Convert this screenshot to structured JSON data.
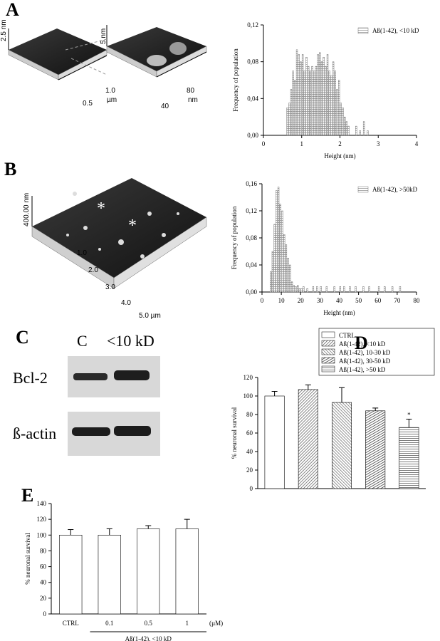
{
  "panels": {
    "letters": [
      "A",
      "B",
      "C",
      "D",
      "E"
    ],
    "afm_a": [
      "2.5 nm",
      "5 nm",
      "1.0",
      "µm",
      "0.5",
      "80",
      "nm",
      "40"
    ],
    "afm_b": [
      "400.00 nm",
      "1.0",
      "2.0",
      "3.0",
      "4.0",
      "5.0 µm",
      "*",
      "*"
    ],
    "blot": {
      "lanes": [
        "C",
        "<10 kD"
      ],
      "rows": [
        "Bcl-2",
        "ß-actin"
      ]
    }
  },
  "chart_data": [
    {
      "type": "histogram",
      "xlabel": "Height (nm)",
      "ylabel": "Frequency of population",
      "bins": [
        0.6,
        0.65,
        0.7,
        0.75,
        0.8,
        0.85,
        0.9,
        0.95,
        1.0,
        1.05,
        1.1,
        1.15,
        1.2,
        1.25,
        1.3,
        1.35,
        1.4,
        1.45,
        1.5,
        1.55,
        1.6,
        1.65,
        1.7,
        1.75,
        1.8,
        1.85,
        1.9,
        1.95,
        2.0,
        2.05,
        2.1,
        2.15,
        2.2,
        2.25,
        2.3,
        2.35,
        2.4,
        2.45,
        2.5,
        2.55,
        2.6,
        2.65,
        2.7,
        2.75,
        2.8
      ],
      "series": [
        {
          "name": "Aß(1-42), <10 kD",
          "color": "#8a8a8a",
          "values": [
            0.03,
            0.035,
            0.05,
            0.07,
            0.06,
            0.093,
            0.088,
            0.08,
            0.088,
            0.07,
            0.085,
            0.075,
            0.07,
            0.075,
            0.07,
            0.075,
            0.088,
            0.09,
            0.08,
            0.085,
            0.075,
            0.088,
            0.07,
            0.065,
            0.08,
            0.07,
            0.05,
            0.06,
            0.035,
            0.03,
            0.02,
            0.015,
            0.01,
            0,
            0,
            0,
            0.01,
            0,
            0.005,
            0,
            0.015,
            0,
            0.005,
            0
          ]
        }
      ],
      "xlim": [
        0,
        4
      ],
      "xticks": [
        0,
        1,
        2,
        3,
        4
      ],
      "ylim": [
        0,
        0.12
      ],
      "yticks": [
        {
          "value": 0,
          "label": "0,00"
        },
        {
          "value": 0.04,
          "label": "0,04"
        },
        {
          "value": 0.08,
          "label": "0,08"
        },
        {
          "value": 0.12,
          "label": "0,12"
        }
      ],
      "legend": "upper right"
    },
    {
      "type": "histogram",
      "xlabel": "Height (nm)",
      "ylabel": "Frequency of population",
      "bins": [
        4,
        5,
        6,
        7,
        8,
        9,
        10,
        11,
        12,
        13,
        14,
        15,
        16,
        17,
        18,
        19,
        20,
        21,
        22,
        23,
        24,
        25,
        26,
        27,
        28,
        29,
        30,
        31,
        32,
        33,
        34,
        35,
        36,
        37,
        38,
        39,
        40,
        41,
        42,
        43,
        44,
        45,
        46,
        47,
        48,
        49,
        50,
        51,
        52,
        53,
        54,
        55,
        56,
        57,
        58,
        59,
        60,
        61,
        62,
        63,
        64,
        65,
        66,
        67,
        68,
        69,
        70,
        71,
        72,
        73
      ],
      "series": [
        {
          "name": "Aß(1-42), >50kD",
          "color": "#8a8a8a",
          "values": [
            0.03,
            0.06,
            0.1,
            0.15,
            0.155,
            0.13,
            0.12,
            0.085,
            0.07,
            0.05,
            0.04,
            0.015,
            0.01,
            0.008,
            0.01,
            0.005,
            0.005,
            0.008,
            0,
            0.005,
            0,
            0,
            0.008,
            0,
            0.008,
            0,
            0.008,
            0,
            0,
            0.008,
            0,
            0,
            0,
            0.008,
            0,
            0,
            0.008,
            0,
            0.008,
            0,
            0,
            0.008,
            0,
            0,
            0.008,
            0,
            0,
            0,
            0.008,
            0,
            0,
            0.008,
            0,
            0,
            0,
            0,
            0.008,
            0,
            0,
            0.008,
            0,
            0,
            0,
            0.008,
            0,
            0,
            0,
            0.008,
            0
          ]
        }
      ],
      "xlim": [
        0,
        80
      ],
      "xticks": [
        0,
        10,
        20,
        30,
        40,
        50,
        60,
        70,
        80
      ],
      "ylim": [
        0,
        0.16
      ],
      "yticks": [
        {
          "value": 0,
          "label": "0,00"
        },
        {
          "value": 0.04,
          "label": "0,04"
        },
        {
          "value": 0.08,
          "label": "0,08"
        },
        {
          "value": 0.12,
          "label": "0,12"
        },
        {
          "value": 0.16,
          "label": "0,16"
        }
      ],
      "legend": "upper right"
    },
    {
      "type": "bar",
      "ylabel": "% neuronal survival",
      "series": [
        {
          "name": "CTRL",
          "color": "#ffffff",
          "values": [
            100
          ],
          "errors": [
            5
          ]
        },
        {
          "name": "Aß(1-42), <10 kD",
          "color": "#555555",
          "values": [
            107
          ],
          "errors": [
            5
          ]
        },
        {
          "name": "Aß(1-42), 10-30 kD",
          "color": "#666666",
          "values": [
            93
          ],
          "errors": [
            16
          ]
        },
        {
          "name": "Aß(1-42), 30-50 kD",
          "color": "#222222",
          "values": [
            84
          ],
          "errors": [
            3
          ]
        },
        {
          "name": "Aß(1-42), >50 kD",
          "color": "#444444",
          "values": [
            66
          ],
          "errors": [
            9
          ]
        }
      ],
      "annotation": "*",
      "ylim": [
        0,
        120
      ],
      "yticks": [
        0,
        20,
        40,
        60,
        80,
        100,
        120
      ],
      "legend": "top"
    },
    {
      "type": "bar",
      "ylabel": "% neuronal survival",
      "categories": [
        "CTRL",
        "0.1",
        "0.5",
        "1"
      ],
      "series": [
        {
          "color": "#ffffff",
          "values": [
            100,
            100,
            108,
            108
          ],
          "errors": [
            7,
            8,
            4,
            12
          ]
        }
      ],
      "unit": "(µM)",
      "group_label": "Aß(1-42), <10 kD",
      "ylim": [
        0,
        140
      ],
      "yticks": [
        0,
        20,
        40,
        60,
        80,
        100,
        120,
        140
      ]
    }
  ]
}
